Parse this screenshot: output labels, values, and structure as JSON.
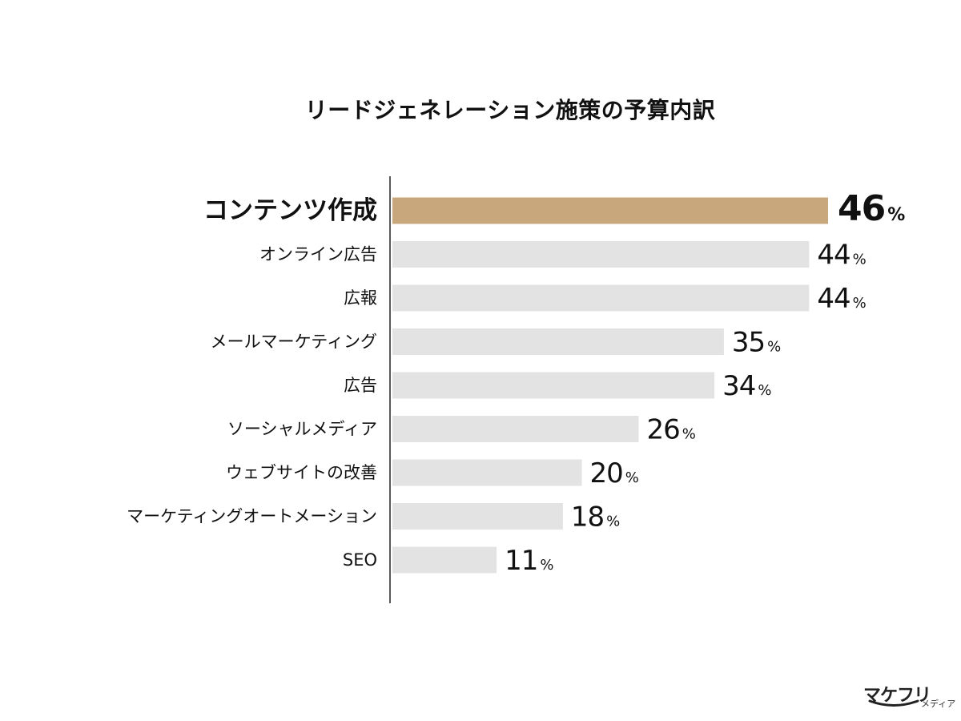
{
  "chart_data": {
    "type": "bar",
    "orientation": "horizontal",
    "title": "リードジェネレーション施策の予算内訳",
    "categories": [
      "コンテンツ作成",
      "オンライン広告",
      "広報",
      "メールマーケティング",
      "広告",
      "ソーシャルメディア",
      "ウェブサイトの改善",
      "マーケティングオートメーション",
      "SEO"
    ],
    "values": [
      46,
      44,
      44,
      35,
      34,
      26,
      20,
      18,
      11
    ],
    "value_suffix": "%",
    "highlight_index": 0,
    "xlim": [
      0,
      46
    ],
    "grid": false,
    "legend": "none",
    "colors": {
      "highlight": "#c9a77c",
      "bar": "#e3e3e3",
      "axis": "#222222",
      "text": "#111111"
    }
  },
  "brand": {
    "name": "マケフリ",
    "sub": "メディア"
  }
}
